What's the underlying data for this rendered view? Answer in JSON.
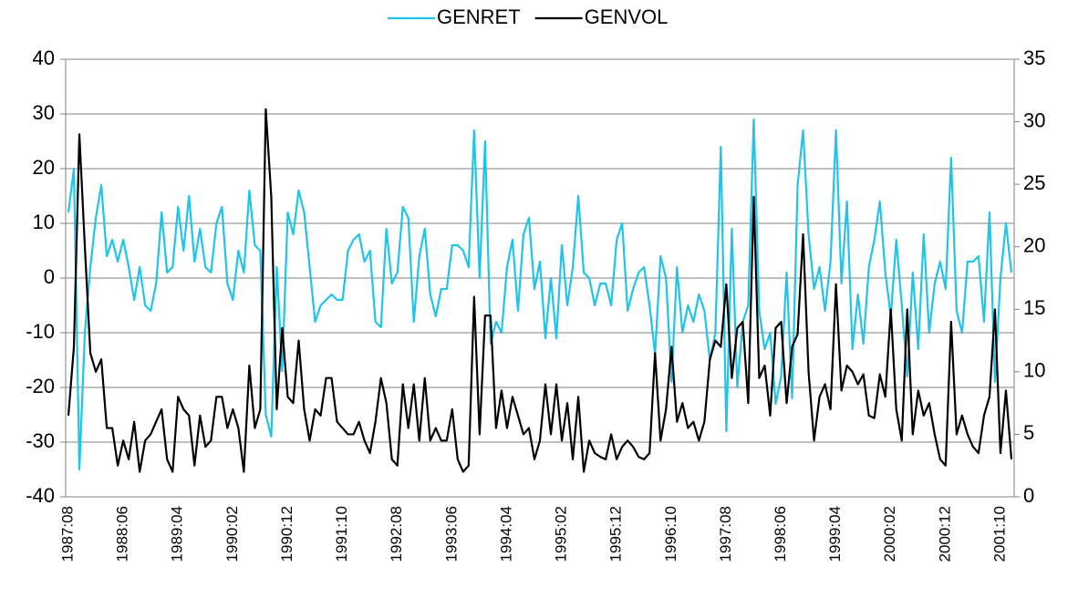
{
  "chart_data": {
    "type": "line",
    "categories": [
      "1987:08",
      null,
      null,
      null,
      null,
      null,
      null,
      null,
      null,
      null,
      "1988:06",
      null,
      null,
      null,
      null,
      null,
      null,
      null,
      null,
      null,
      "1989:04",
      null,
      null,
      null,
      null,
      null,
      null,
      null,
      null,
      null,
      "1990:02",
      null,
      null,
      null,
      null,
      null,
      null,
      null,
      null,
      null,
      "1990:12",
      null,
      null,
      null,
      null,
      null,
      null,
      null,
      null,
      null,
      "1991:10",
      null,
      null,
      null,
      null,
      null,
      null,
      null,
      null,
      null,
      "1992:08",
      null,
      null,
      null,
      null,
      null,
      null,
      null,
      null,
      null,
      "1993:06",
      null,
      null,
      null,
      null,
      null,
      null,
      null,
      null,
      null,
      "1994:04",
      null,
      null,
      null,
      null,
      null,
      null,
      null,
      null,
      null,
      "1995:02",
      null,
      null,
      null,
      null,
      null,
      null,
      null,
      null,
      null,
      "1995:12",
      null,
      null,
      null,
      null,
      null,
      null,
      null,
      null,
      null,
      "1996:10",
      null,
      null,
      null,
      null,
      null,
      null,
      null,
      null,
      null,
      "1997:08",
      null,
      null,
      null,
      null,
      null,
      null,
      null,
      null,
      null,
      "1998:06",
      null,
      null,
      null,
      null,
      null,
      null,
      null,
      null,
      null,
      "1999:04",
      null,
      null,
      null,
      null,
      null,
      null,
      null,
      null,
      null,
      "2000:02",
      null,
      null,
      null,
      null,
      null,
      null,
      null,
      null,
      null,
      "2000:12",
      null,
      null,
      null,
      null,
      null,
      null,
      null,
      null,
      null,
      "2001:10",
      null,
      null
    ],
    "series": [
      {
        "name": "GENRET",
        "color": "#1ec4ea",
        "axis": "y",
        "values": [
          12,
          20,
          -35,
          -10,
          2,
          11,
          17,
          4,
          7,
          3,
          7,
          2,
          -4,
          2,
          -5,
          -6,
          -1,
          12,
          1,
          2,
          13,
          5,
          15,
          3,
          9,
          2,
          1,
          10,
          13,
          -1,
          -4,
          5,
          1,
          16,
          6,
          5,
          -25,
          -29,
          2,
          -17,
          12,
          8,
          16,
          12,
          2,
          -8,
          -5,
          -4,
          -3,
          -4,
          -4,
          5,
          7,
          8,
          3,
          5,
          -8,
          -9,
          9,
          -1,
          1,
          13,
          11,
          -8,
          4,
          9,
          -3,
          -7,
          -2,
          -2,
          6,
          6,
          5,
          2,
          27,
          0,
          25,
          -12,
          -8,
          -10,
          2,
          7,
          -6,
          8,
          11,
          -2,
          3,
          -11,
          0,
          -11,
          6,
          -5,
          2,
          15,
          1,
          0,
          -5,
          -1,
          -1,
          -5,
          7,
          10,
          -6,
          -2,
          1,
          2,
          -5,
          -14,
          4,
          0,
          -19,
          2,
          -10,
          -5,
          -8,
          -3,
          -6,
          -15,
          -10,
          24,
          -28,
          9,
          -20,
          -8,
          -5,
          29,
          -6,
          -13,
          -10,
          -23,
          -18,
          1,
          -22,
          17,
          27,
          8,
          -2,
          2,
          -6,
          3,
          27,
          -1,
          14,
          -13,
          -3,
          -12,
          2,
          7,
          14,
          1,
          -7,
          7,
          -5,
          -18,
          1,
          -13,
          8,
          -10,
          -1,
          3,
          -2,
          22,
          -6,
          -10,
          3,
          3,
          4,
          -8,
          12,
          -19,
          0,
          10,
          1
        ]
      },
      {
        "name": "GENVOL",
        "color": "#000000",
        "axis": "y2",
        "values": [
          6.5,
          12,
          29,
          20,
          11.5,
          10,
          11,
          5.5,
          5.5,
          2.5,
          4.5,
          3,
          6,
          2,
          4.5,
          5,
          6,
          7,
          3,
          2,
          8,
          7,
          6.5,
          2.5,
          6.5,
          4,
          4.5,
          8,
          8,
          5.5,
          7,
          5.5,
          2,
          10.5,
          5.5,
          7,
          31,
          24,
          7,
          13.5,
          8,
          7.5,
          12.5,
          7,
          4.5,
          7,
          6.5,
          9.5,
          9.5,
          6,
          5.5,
          5,
          5,
          6,
          4.5,
          3.5,
          6,
          9.5,
          7.5,
          3,
          2.5,
          9,
          5.5,
          9,
          4.5,
          9.5,
          4.5,
          5.5,
          4.5,
          4.5,
          7,
          3,
          2,
          2.5,
          16,
          5,
          14.5,
          14.5,
          5.5,
          8.5,
          5.5,
          8,
          6.5,
          5,
          5.5,
          3,
          4.5,
          9,
          5,
          9,
          4.5,
          7.5,
          3,
          8,
          2,
          4.5,
          3.5,
          3.2,
          3,
          5,
          3,
          4,
          4.5,
          4,
          3.2,
          3,
          3.5,
          11.5,
          4.5,
          7,
          12,
          6,
          7.5,
          5.5,
          6,
          4.5,
          6,
          11,
          12.5,
          12,
          17,
          9.5,
          13.5,
          14,
          7.5,
          24,
          9.5,
          10.5,
          6.5,
          13.5,
          14,
          7.5,
          12,
          13,
          21,
          10,
          4.5,
          8,
          9,
          7,
          17,
          8.5,
          10.5,
          10,
          9,
          9.8,
          6.5,
          6.3,
          9.8,
          8,
          15,
          7,
          4.5,
          15,
          5,
          8.5,
          6.5,
          7.5,
          5,
          3,
          2.5,
          14,
          5,
          6.5,
          5,
          4,
          3.5,
          6.5,
          8,
          15,
          3.5,
          8.5,
          3
        ]
      }
    ],
    "ylim": [
      -40,
      40
    ],
    "yticks": [
      -40,
      -30,
      -20,
      -10,
      0,
      10,
      20,
      30,
      40
    ],
    "y2lim": [
      0,
      35
    ],
    "y2ticks": [
      0,
      5,
      10,
      15,
      20,
      25,
      30,
      35
    ],
    "grid": true,
    "legend": "top"
  }
}
